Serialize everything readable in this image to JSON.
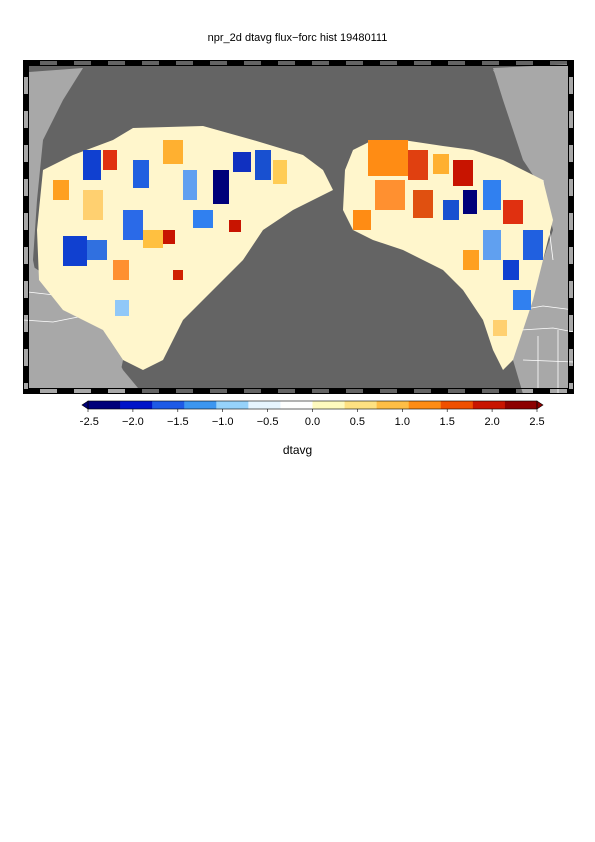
{
  "title": "npr_2d dtavg flux−forc hist 19480111",
  "colorbar": {
    "label": "dtavg",
    "min": -2.5,
    "max": 2.5,
    "ticks": [
      "−2.5",
      "−2.0",
      "−1.5",
      "−1.0",
      "−0.5",
      "0.0",
      "0.5",
      "1.0",
      "1.5",
      "2.0",
      "2.5"
    ],
    "colors": [
      "#00007a",
      "#0014c8",
      "#1e5ae6",
      "#3c96f0",
      "#96d2fa",
      "#e6f5ff",
      "#ffffff",
      "#fffabe",
      "#ffe182",
      "#ffbe46",
      "#ff8c14",
      "#f05000",
      "#c81400",
      "#8c0000"
    ]
  },
  "map": {
    "ocean_color": "#646464",
    "land_color": "#a8a8a8",
    "border_color": "#ffffff"
  }
}
